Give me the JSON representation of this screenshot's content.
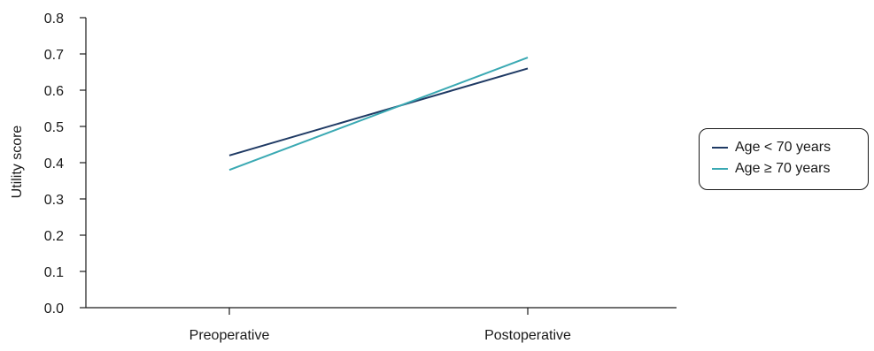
{
  "chart_data": {
    "type": "line",
    "categories": [
      "Preoperative",
      "Postoperative"
    ],
    "series": [
      {
        "name": "Age < 70 years",
        "values": [
          0.42,
          0.66
        ],
        "color": "#1f3a64"
      },
      {
        "name": "Age ≥ 70 years",
        "values": [
          0.38,
          0.69
        ],
        "color": "#3aa9b3"
      }
    ],
    "ylabel": "Utility score",
    "xlabel": "",
    "ylim": [
      0.0,
      0.8
    ],
    "yticks": [
      "0.0",
      "0.1",
      "0.2",
      "0.3",
      "0.4",
      "0.5",
      "0.6",
      "0.7",
      "0.8"
    ],
    "grid": false,
    "legend_position": "right"
  }
}
